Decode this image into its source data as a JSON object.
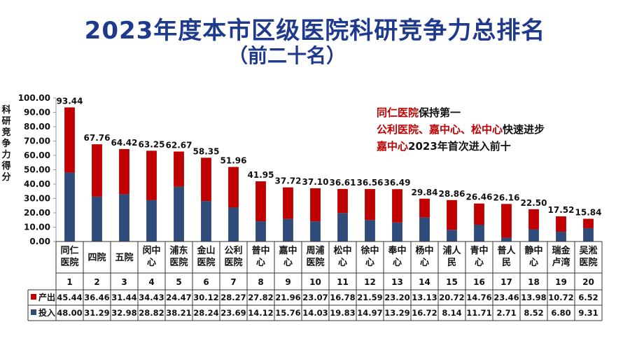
{
  "title": "2023年度本市区级医院科研竞争力总排名",
  "subtitle": "（前二十名）",
  "annotations": {
    "line1_red": "同仁医院",
    "line1_black": "保持第一",
    "line2_red": "公利医院、嘉中心、松中心",
    "line2_black": "快速进步",
    "line3_red": "嘉中心",
    "line3_black": "2023年首次进入前十"
  },
  "colors": {
    "output": "#c00000",
    "input": "#2e4b7a",
    "title": "#1f3a8c"
  },
  "chart_data": {
    "type": "bar",
    "stacked": true,
    "ylabel": "科研竞争力得分",
    "ylim": [
      0,
      100
    ],
    "yticks": [
      "0.00",
      "10.00",
      "20.00",
      "30.00",
      "40.00",
      "50.00",
      "60.00",
      "70.00",
      "80.00",
      "90.00",
      "100.00"
    ],
    "categories": [
      "同仁医院",
      "四院",
      "五院",
      "闵中心",
      "浦东医院",
      "金山医院",
      "公利医院",
      "普中心",
      "嘉中心",
      "周浦医院",
      "松中心",
      "徐中心",
      "奉中心",
      "杨中心",
      "浦人民",
      "青中心",
      "普人民",
      "静中心",
      "瑞金卢湾",
      "吴淞医院"
    ],
    "ranks": [
      "1",
      "2",
      "3",
      "4",
      "5",
      "6",
      "7",
      "8",
      "9",
      "10",
      "11",
      "12",
      "13",
      "14",
      "15",
      "16",
      "17",
      "18",
      "19",
      "20"
    ],
    "totals": [
      "93.44",
      "67.76",
      "64.42",
      "63.25",
      "62.67",
      "58.35",
      "51.96",
      "41.95",
      "37.72",
      "37.10",
      "36.61",
      "36.56",
      "36.49",
      "29.84",
      "28.86",
      "26.46",
      "26.16",
      "22.50",
      "17.52",
      "15.84"
    ],
    "series": [
      {
        "name": "投入",
        "values": [
          48.0,
          31.29,
          32.98,
          28.82,
          38.21,
          28.24,
          23.69,
          14.12,
          15.76,
          14.03,
          19.83,
          14.97,
          13.29,
          16.72,
          8.14,
          11.71,
          2.71,
          8.52,
          6.8,
          9.31
        ],
        "labels": [
          "48.00",
          "31.29",
          "32.98",
          "28.82",
          "38.21",
          "28.24",
          "23.69",
          "14.12",
          "15.76",
          "14.03",
          "19.83",
          "14.97",
          "13.29",
          "16.72",
          "8.14",
          "11.71",
          "2.71",
          "8.52",
          "6.80",
          "9.31"
        ]
      },
      {
        "name": "产出",
        "values": [
          45.44,
          36.46,
          31.44,
          34.43,
          24.47,
          30.12,
          28.27,
          27.82,
          21.96,
          23.07,
          16.78,
          21.59,
          23.2,
          13.13,
          20.72,
          14.76,
          23.46,
          13.98,
          10.72,
          6.52
        ],
        "labels": [
          "45.44",
          "36.46",
          "31.44",
          "34.43",
          "24.47",
          "30.12",
          "28.27",
          "27.82",
          "21.96",
          "23.07",
          "16.78",
          "21.59",
          "23.20",
          "13.13",
          "20.72",
          "14.76",
          "23.46",
          "13.98",
          "10.72",
          "6.52"
        ]
      }
    ],
    "legend_in_table": true
  }
}
